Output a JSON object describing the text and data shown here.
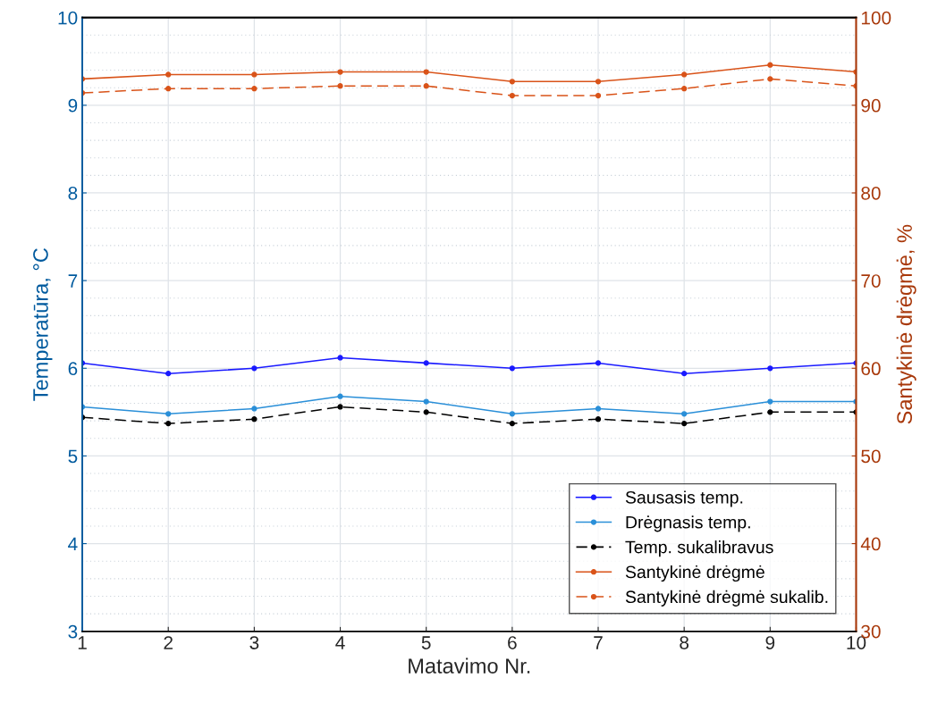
{
  "chart_data": {
    "type": "line",
    "xlabel": "Matavimo Nr.",
    "ylabel": "Temperatūra, °C",
    "y2label": "Santykinė drėgmė, %",
    "x": [
      1,
      2,
      3,
      4,
      5,
      6,
      7,
      8,
      9,
      10
    ],
    "xlim": [
      1,
      10
    ],
    "xticks": [
      1,
      2,
      3,
      4,
      5,
      6,
      7,
      8,
      9,
      10
    ],
    "ylim": [
      3,
      10
    ],
    "yticks": [
      3,
      4,
      5,
      6,
      7,
      8,
      9,
      10
    ],
    "y2lim": [
      30,
      100
    ],
    "y2ticks": [
      30,
      40,
      50,
      60,
      70,
      80,
      90,
      100
    ],
    "grid": true,
    "legend": "bottom right",
    "marker": "circle",
    "series": [
      {
        "name": "Sausasis temp.",
        "color": "#1a1aff",
        "line_style": "solid",
        "values": [
          6.06,
          5.94,
          6.0,
          6.12,
          6.06,
          6.0,
          6.06,
          5.94,
          6.0,
          6.06
        ]
      },
      {
        "name": "Drėgnasis temp.",
        "color": "#2a8fd8",
        "line_style": "solid",
        "values": [
          5.56,
          5.48,
          5.54,
          5.68,
          5.62,
          5.48,
          5.54,
          5.48,
          5.62,
          5.62
        ]
      },
      {
        "name": "Temp. sukalibravus",
        "color": "#000000",
        "line_style": "dashed",
        "values": [
          5.44,
          5.37,
          5.42,
          5.56,
          5.5,
          5.37,
          5.42,
          5.37,
          5.5,
          5.5
        ]
      },
      {
        "name": "Santykinė drėgmė",
        "color": "#d95319",
        "line_style": "solid",
        "axis": "y2",
        "values": [
          93.0,
          93.5,
          93.5,
          93.8,
          93.8,
          92.7,
          92.7,
          93.5,
          94.6,
          93.8
        ]
      },
      {
        "name": "Santykinė drėgmė sukalib.",
        "color": "#d95319",
        "line_style": "dashed",
        "axis": "y2",
        "values": [
          91.4,
          91.9,
          91.9,
          92.2,
          92.2,
          91.1,
          91.1,
          91.9,
          93.0,
          92.2
        ]
      }
    ]
  }
}
